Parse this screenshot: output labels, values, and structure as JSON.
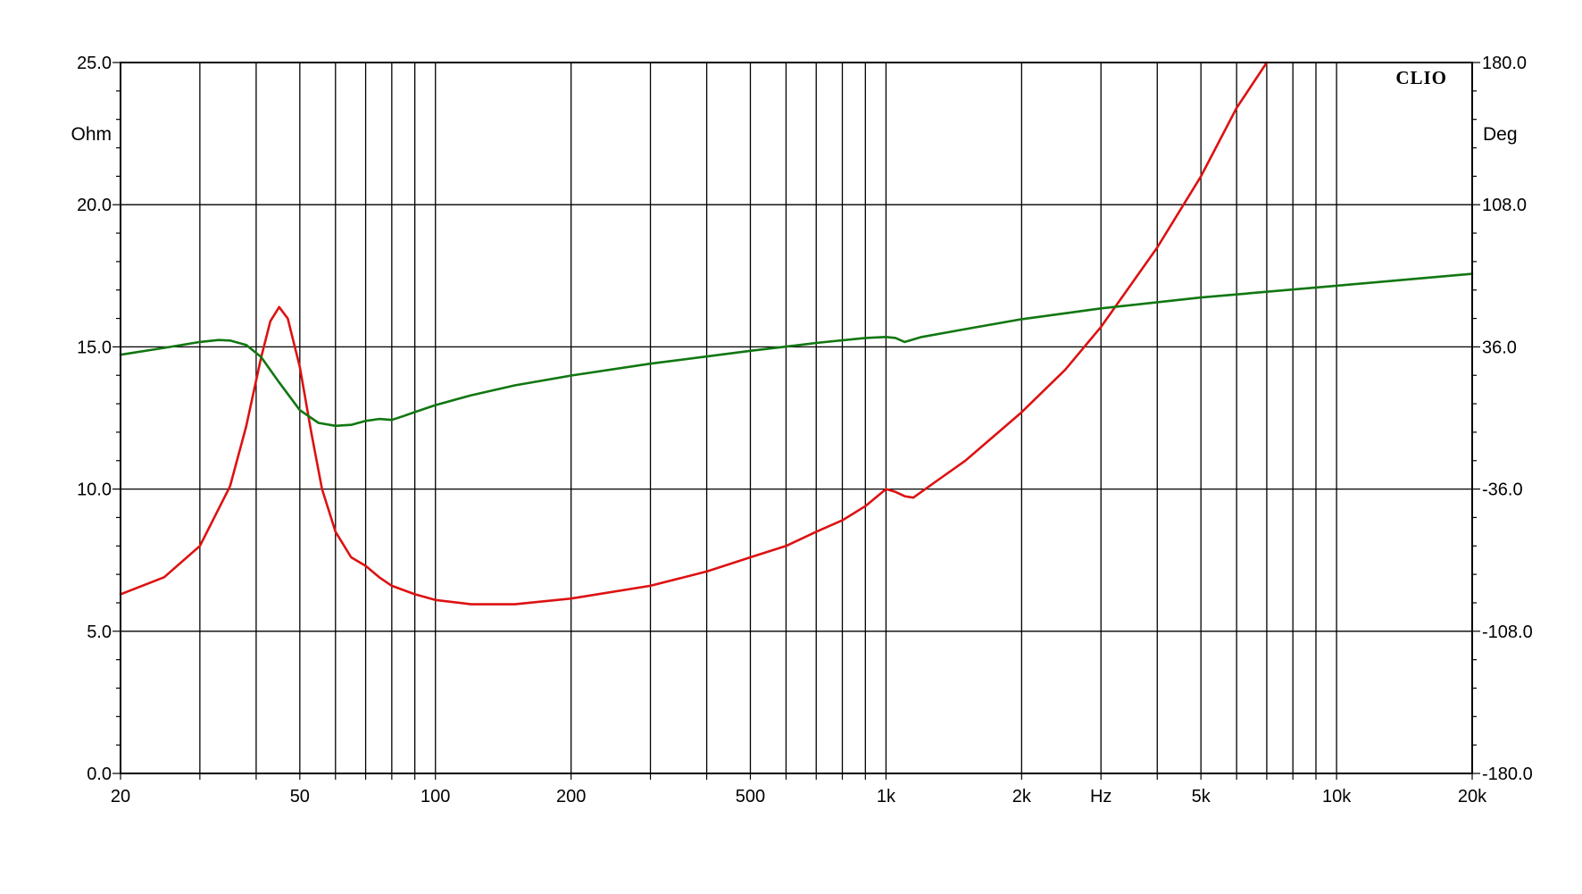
{
  "chart_data": {
    "type": "line",
    "brand": "CLIO",
    "x_unit": "Hz",
    "left_unit": "Ohm",
    "right_unit": "Deg",
    "x_scale": "log",
    "xlim": [
      20,
      20000
    ],
    "ylim_left": [
      0,
      25
    ],
    "ylim_right": [
      -180,
      180
    ],
    "grid": true,
    "colors": {
      "impedance": "#dd1111",
      "phase": "#117711",
      "grid": "#000000"
    },
    "x_tick_labels": [
      {
        "v": 20,
        "t": "20"
      },
      {
        "v": 50,
        "t": "50"
      },
      {
        "v": 100,
        "t": "100"
      },
      {
        "v": 200,
        "t": "200"
      },
      {
        "v": 500,
        "t": "500"
      },
      {
        "v": 1000,
        "t": "1k"
      },
      {
        "v": 2000,
        "t": "2k"
      },
      {
        "v": 3000,
        "t": "Hz"
      },
      {
        "v": 5000,
        "t": "5k"
      },
      {
        "v": 10000,
        "t": "10k"
      },
      {
        "v": 20000,
        "t": "20k"
      }
    ],
    "left_tick_labels": [
      {
        "v": 0,
        "t": "0.0"
      },
      {
        "v": 5,
        "t": "5.0"
      },
      {
        "v": 10,
        "t": "10.0"
      },
      {
        "v": 15,
        "t": "15.0"
      },
      {
        "v": 20,
        "t": "20.0"
      },
      {
        "v": 25,
        "t": "25.0"
      }
    ],
    "right_tick_labels": [
      {
        "v": -180,
        "t": "-180.0"
      },
      {
        "v": -108,
        "t": "-108.0"
      },
      {
        "v": -36,
        "t": "-36.0"
      },
      {
        "v": 36,
        "t": "36.0"
      },
      {
        "v": 108,
        "t": "108.0"
      },
      {
        "v": 180,
        "t": "180.0"
      }
    ],
    "series": [
      {
        "key": "impedance",
        "axis": "left",
        "x": [
          20,
          25,
          30,
          35,
          38,
          41,
          43,
          45,
          47,
          50,
          53,
          56,
          60,
          65,
          70,
          75,
          80,
          90,
          100,
          120,
          150,
          200,
          300,
          400,
          500,
          600,
          700,
          800,
          900,
          1000,
          1050,
          1100,
          1150,
          1300,
          1500,
          2000,
          2500,
          3000,
          3500,
          4000,
          5000,
          6000,
          7000
        ],
        "y": [
          6.3,
          6.9,
          8.0,
          10.1,
          12.2,
          14.6,
          15.9,
          16.4,
          16.0,
          14.3,
          12.0,
          10.0,
          8.5,
          7.6,
          7.3,
          6.9,
          6.6,
          6.3,
          6.1,
          5.95,
          5.95,
          6.15,
          6.6,
          7.1,
          7.6,
          8.0,
          8.5,
          8.9,
          9.4,
          10.0,
          9.9,
          9.75,
          9.7,
          10.3,
          11.0,
          12.7,
          14.2,
          15.7,
          17.2,
          18.5,
          21.0,
          23.4,
          25.0
        ]
      },
      {
        "key": "phase",
        "axis": "right",
        "x": [
          20,
          25,
          30,
          33,
          35,
          38,
          41,
          45,
          50,
          55,
          60,
          65,
          70,
          75,
          80,
          85,
          90,
          100,
          120,
          150,
          200,
          300,
          500,
          700,
          900,
          1000,
          1050,
          1100,
          1200,
          1500,
          2000,
          3000,
          5000,
          10000,
          20000
        ],
        "y": [
          32,
          35.5,
          38.5,
          39.5,
          39.2,
          37.0,
          31.0,
          18.0,
          4.0,
          -2.5,
          -4.0,
          -3.5,
          -1.5,
          -0.5,
          -1.0,
          1.0,
          3.0,
          6.5,
          11.5,
          16.5,
          21.5,
          27.5,
          34.0,
          38.0,
          40.5,
          41.0,
          40.5,
          38.5,
          41.0,
          45.0,
          50.0,
          55.5,
          61.0,
          67.0,
          73.0
        ]
      }
    ]
  }
}
